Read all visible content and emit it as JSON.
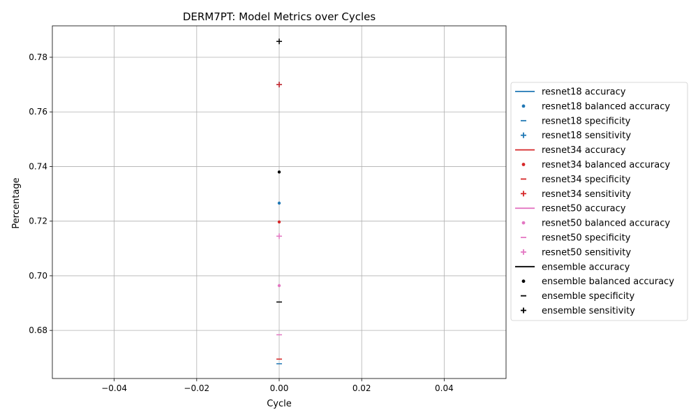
{
  "chart_data": {
    "type": "scatter",
    "title": "DERM7PT: Model Metrics over Cycles",
    "xlabel": "Cycle",
    "ylabel": "Percentage",
    "xlim": [
      -0.055,
      0.055
    ],
    "ylim": [
      0.6624,
      0.7915
    ],
    "xticks": [
      -0.04,
      -0.02,
      0.0,
      0.02,
      0.04
    ],
    "xtick_labels": [
      "−0.04",
      "−0.02",
      "0.00",
      "0.02",
      "0.04"
    ],
    "yticks": [
      0.68,
      0.7,
      0.72,
      0.74,
      0.76,
      0.78
    ],
    "ytick_labels": [
      "0.68",
      "0.70",
      "0.72",
      "0.74",
      "0.76",
      "0.78"
    ],
    "grid": true,
    "legend_position": "center-right outside",
    "models": [
      {
        "name": "resnet18",
        "color": "#1f77b4",
        "accuracy": null,
        "balanced_accuracy": 0.7266,
        "specificity": 0.6678,
        "sensitivity": 0.77
      },
      {
        "name": "resnet34",
        "color": "#d62728",
        "accuracy": null,
        "balanced_accuracy": 0.7197,
        "specificity": 0.6695,
        "sensitivity": 0.77
      },
      {
        "name": "resnet50",
        "color": "#e377c2",
        "accuracy": null,
        "balanced_accuracy": 0.6964,
        "specificity": 0.6784,
        "sensitivity": 0.7145
      },
      {
        "name": "ensemble",
        "color": "#000000",
        "accuracy": null,
        "balanced_accuracy": 0.738,
        "specificity": 0.6904,
        "sensitivity": 0.7858
      }
    ],
    "series": [
      {
        "name": "resnet18 accuracy",
        "marker": "line",
        "color": "#1f77b4"
      },
      {
        "name": "resnet18 balanced accuracy",
        "marker": "dot",
        "color": "#1f77b4"
      },
      {
        "name": "resnet18 specificity",
        "marker": "dash",
        "color": "#1f77b4"
      },
      {
        "name": "resnet18 sensitivity",
        "marker": "plus",
        "color": "#1f77b4"
      },
      {
        "name": "resnet34 accuracy",
        "marker": "line",
        "color": "#d62728"
      },
      {
        "name": "resnet34 balanced accuracy",
        "marker": "dot",
        "color": "#d62728"
      },
      {
        "name": "resnet34 specificity",
        "marker": "dash",
        "color": "#d62728"
      },
      {
        "name": "resnet34 sensitivity",
        "marker": "plus",
        "color": "#d62728"
      },
      {
        "name": "resnet50 accuracy",
        "marker": "line",
        "color": "#e377c2"
      },
      {
        "name": "resnet50 balanced accuracy",
        "marker": "dot",
        "color": "#e377c2"
      },
      {
        "name": "resnet50 specificity",
        "marker": "dash",
        "color": "#e377c2"
      },
      {
        "name": "resnet50 sensitivity",
        "marker": "plus",
        "color": "#e377c2"
      },
      {
        "name": "ensemble accuracy",
        "marker": "line",
        "color": "#000000"
      },
      {
        "name": "ensemble balanced accuracy",
        "marker": "dot",
        "color": "#000000"
      },
      {
        "name": "ensemble specificity",
        "marker": "dash",
        "color": "#000000"
      },
      {
        "name": "ensemble sensitivity",
        "marker": "plus",
        "color": "#000000"
      }
    ]
  }
}
